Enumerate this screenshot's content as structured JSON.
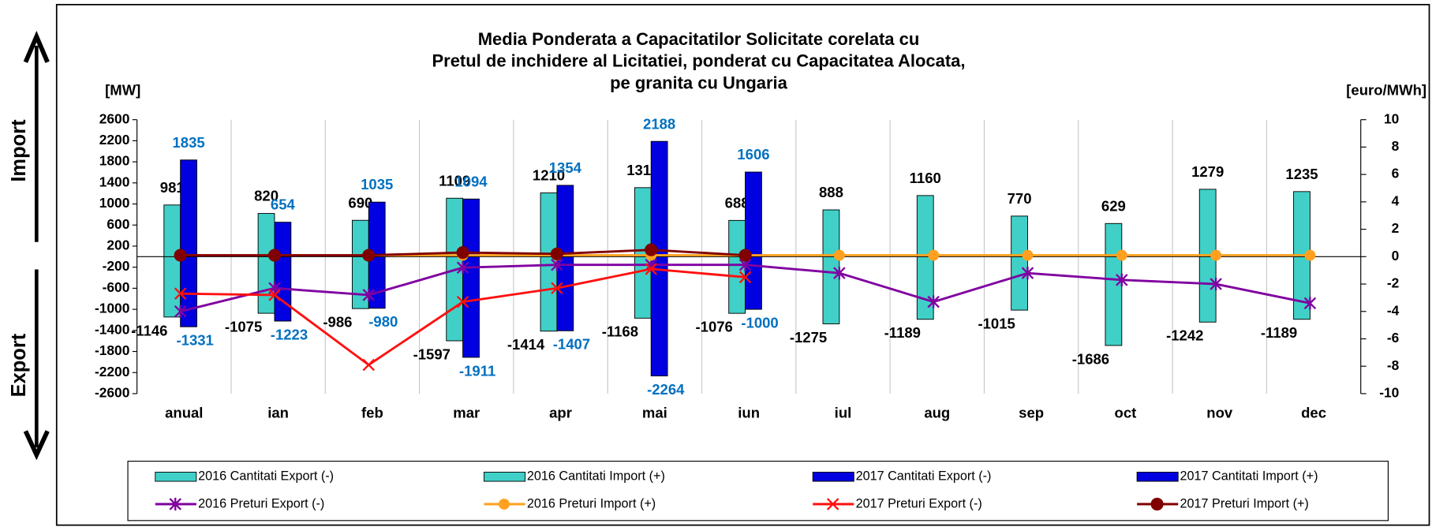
{
  "chart_data": {
    "type": "bar",
    "title": [
      "Media Ponderata a Capacitatilor Solicitate corelata cu",
      "Pretul de inchidere al Licitatiei,  ponderat cu Capacitatea Alocata,",
      "pe granita cu Ungaria"
    ],
    "y_label": "[MW]",
    "y2_label": "[euro/MWh]",
    "side_labels": [
      "Import",
      "Export"
    ],
    "categories": [
      "anual",
      "ian",
      "feb",
      "mar",
      "apr",
      "mai",
      "iun",
      "iul",
      "aug",
      "sep",
      "oct",
      "nov",
      "dec"
    ],
    "ylim": [
      -2600,
      2600
    ],
    "yticks": [
      -2600,
      -2200,
      -1800,
      -1400,
      -1000,
      -600,
      -200,
      200,
      600,
      1000,
      1400,
      1800,
      2200,
      2600
    ],
    "y2lim": [
      -10,
      10
    ],
    "y2ticks": [
      -10,
      -8,
      -6,
      -4,
      -2,
      0,
      2,
      4,
      6,
      8,
      10
    ],
    "grid": false,
    "legend": "bottom",
    "series": [
      {
        "name": "2016 Cantitati Export (-)",
        "kind": "bar",
        "group": 0,
        "color": "#40d0c8",
        "label_color": "#000000",
        "values": [
          -1146,
          -1075,
          -986,
          -1597,
          -1414,
          -1168,
          -1076,
          -1275,
          -1189,
          -1015,
          -1686,
          -1242,
          -1189
        ]
      },
      {
        "name": "2016 Cantitati Import (+)",
        "kind": "bar",
        "group": 0,
        "color": "#40d0c8",
        "label_color": "#000000",
        "values": [
          981,
          820,
          690,
          1109,
          1210,
          1310,
          688,
          888,
          1160,
          770,
          629,
          1279,
          1235
        ]
      },
      {
        "name": "2017 Cantitati Export (-)",
        "kind": "bar",
        "group": 1,
        "color": "#0000e0",
        "label_color": "#0070c0",
        "values": [
          -1331,
          -1223,
          -980,
          -1911,
          -1407,
          -2264,
          -1000,
          null,
          null,
          null,
          null,
          null,
          null
        ]
      },
      {
        "name": "2017 Cantitati Import (+)",
        "kind": "bar",
        "group": 1,
        "color": "#0000e0",
        "label_color": "#0070c0",
        "values": [
          1835,
          654,
          1035,
          1094,
          1354,
          2188,
          1606,
          null,
          null,
          null,
          null,
          null,
          null
        ]
      },
      {
        "name": "2016 Preturi Export (-)",
        "kind": "line",
        "axis": "y2",
        "marker": "star",
        "color": "#8000a0",
        "values": [
          -4,
          -2.3,
          -2.8,
          -0.8,
          -0.6,
          -0.6,
          -0.6,
          -1.2,
          -3.3,
          -1.2,
          -1.7,
          -2,
          -3.4
        ]
      },
      {
        "name": "2016 Preturi Import (+)",
        "kind": "line",
        "axis": "y2",
        "marker": "circle",
        "color": "#ffa020",
        "values": [
          0.1,
          0.1,
          0.1,
          0.1,
          0.1,
          0.1,
          0.1,
          0.1,
          0.1,
          0.1,
          0.1,
          0.1,
          0.1
        ]
      },
      {
        "name": "2017 Preturi Export (-)",
        "kind": "line",
        "axis": "y2",
        "marker": "x",
        "color": "#ff1010",
        "values": [
          -2.7,
          -2.8,
          -7.9,
          -3.3,
          -2.3,
          -0.9,
          -1.5,
          null,
          null,
          null,
          null,
          null,
          null
        ]
      },
      {
        "name": "2017 Preturi Import (+)",
        "kind": "line",
        "axis": "y2",
        "marker": "bigcircle",
        "color": "#800000",
        "values": [
          0.1,
          0.1,
          0.1,
          0.3,
          0.2,
          0.5,
          0.1,
          null,
          null,
          null,
          null,
          null,
          null
        ]
      }
    ]
  }
}
